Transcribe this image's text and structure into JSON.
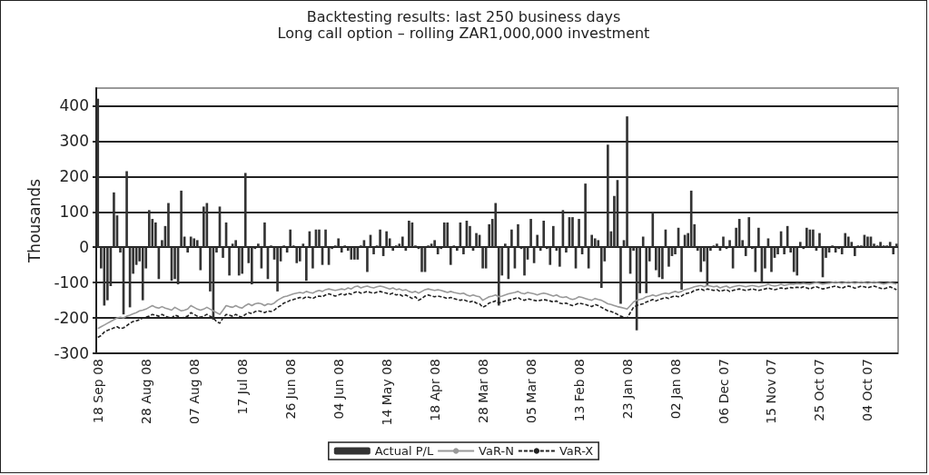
{
  "chart_data": {
    "type": "bar",
    "title": "Backtesting results: last 250 business days",
    "subtitle": "Long call option – rolling ZAR1,000,000 investment",
    "ylabel": "Thousands",
    "categories": [
      "18 Sep 08",
      null,
      null,
      null,
      null,
      null,
      null,
      null,
      null,
      null,
      null,
      null,
      null,
      null,
      null,
      "28 Aug 08",
      null,
      null,
      null,
      null,
      null,
      null,
      null,
      null,
      null,
      null,
      null,
      null,
      null,
      null,
      "07 Aug 08",
      null,
      null,
      null,
      null,
      null,
      null,
      null,
      null,
      null,
      null,
      null,
      null,
      null,
      null,
      "17 Jul 08",
      null,
      null,
      null,
      null,
      null,
      null,
      null,
      null,
      null,
      null,
      null,
      null,
      null,
      null,
      "26 Jun 08",
      null,
      null,
      null,
      null,
      null,
      null,
      null,
      null,
      null,
      null,
      null,
      null,
      null,
      null,
      "04 Jun 08",
      null,
      null,
      null,
      null,
      null,
      null,
      null,
      null,
      null,
      null,
      null,
      null,
      null,
      null,
      "14 May 08",
      null,
      null,
      null,
      null,
      null,
      null,
      null,
      null,
      null,
      null,
      null,
      null,
      null,
      null,
      "18 Apr 08",
      null,
      null,
      null,
      null,
      null,
      null,
      null,
      null,
      null,
      null,
      null,
      null,
      null,
      null,
      "28 Mar 08",
      null,
      null,
      null,
      null,
      null,
      null,
      null,
      null,
      null,
      null,
      null,
      null,
      null,
      null,
      "05 Mar 08",
      null,
      null,
      null,
      null,
      null,
      null,
      null,
      null,
      null,
      null,
      null,
      null,
      null,
      null,
      "13 Feb 08",
      null,
      null,
      null,
      null,
      null,
      null,
      null,
      null,
      null,
      null,
      null,
      null,
      null,
      null,
      "23 Jan 08",
      null,
      null,
      null,
      null,
      null,
      null,
      null,
      null,
      null,
      null,
      null,
      null,
      null,
      null,
      "02 Jan 08",
      null,
      null,
      null,
      null,
      null,
      null,
      null,
      null,
      null,
      null,
      null,
      null,
      null,
      null,
      "06 Dec 07",
      null,
      null,
      null,
      null,
      null,
      null,
      null,
      null,
      null,
      null,
      null,
      null,
      null,
      null,
      "15 Nov 07",
      null,
      null,
      null,
      null,
      null,
      null,
      null,
      null,
      null,
      null,
      null,
      null,
      null,
      null,
      "25 Oct 07",
      null,
      null,
      null,
      null,
      null,
      null,
      null,
      null,
      null,
      null,
      null,
      null,
      null,
      null,
      "04 Oct 07",
      null,
      null,
      null,
      null,
      null,
      null,
      null,
      null,
      null
    ],
    "series": [
      {
        "name": "Actual P/L",
        "color": "#333333",
        "values": [
          420,
          -60,
          -165,
          -150,
          -110,
          155,
          90,
          -15,
          -190,
          215,
          -170,
          -75,
          -50,
          -40,
          -150,
          -60,
          105,
          80,
          70,
          -90,
          20,
          60,
          125,
          -95,
          -90,
          -105,
          160,
          30,
          -15,
          30,
          25,
          20,
          -65,
          115,
          125,
          -125,
          -205,
          -15,
          115,
          -30,
          70,
          -80,
          10,
          20,
          -80,
          -75,
          210,
          -45,
          -105,
          -5,
          10,
          -60,
          70,
          -90,
          5,
          -35,
          -125,
          -40,
          5,
          -15,
          50,
          5,
          -45,
          -40,
          10,
          -95,
          45,
          -60,
          50,
          50,
          -50,
          50,
          -50,
          -5,
          5,
          25,
          -15,
          5,
          -10,
          -35,
          -35,
          -35,
          5,
          20,
          -70,
          35,
          -20,
          5,
          50,
          -25,
          45,
          25,
          -10,
          5,
          10,
          30,
          -10,
          75,
          70,
          5,
          -5,
          -70,
          -70,
          5,
          10,
          20,
          -20,
          -5,
          70,
          70,
          -50,
          5,
          -10,
          70,
          -20,
          75,
          60,
          -10,
          40,
          35,
          -60,
          -60,
          65,
          80,
          125,
          -165,
          -80,
          10,
          -90,
          50,
          -60,
          65,
          -5,
          -80,
          -35,
          80,
          -45,
          35,
          -10,
          75,
          -5,
          -50,
          60,
          -10,
          -55,
          105,
          -15,
          85,
          85,
          -60,
          80,
          -20,
          180,
          -60,
          35,
          25,
          20,
          -115,
          -40,
          290,
          45,
          145,
          190,
          -160,
          20,
          370,
          -75,
          -10,
          -235,
          -130,
          30,
          -130,
          -40,
          100,
          -65,
          -85,
          -90,
          50,
          -55,
          -25,
          -20,
          55,
          -120,
          35,
          40,
          160,
          65,
          -10,
          -70,
          -40,
          -110,
          -10,
          5,
          10,
          -10,
          30,
          -5,
          20,
          -60,
          55,
          80,
          20,
          -25,
          85,
          -5,
          -70,
          55,
          -100,
          -60,
          25,
          -70,
          -30,
          -20,
          45,
          -20,
          60,
          -15,
          -70,
          -80,
          15,
          -5,
          55,
          50,
          50,
          -10,
          40,
          -85,
          -30,
          -15,
          5,
          -15,
          -5,
          -20,
          40,
          30,
          15,
          -25,
          5,
          5,
          35,
          30,
          30,
          10,
          5,
          15,
          5,
          5,
          15,
          -20,
          10
        ]
      },
      {
        "name": "VaR-N",
        "type": "line",
        "color": "#999999",
        "line_style": "solid",
        "values": [
          -230,
          -225,
          -220,
          -215,
          -210,
          -205,
          -200,
          -198,
          -200,
          -195,
          -192,
          -188,
          -185,
          -180,
          -178,
          -175,
          -170,
          -165,
          -170,
          -172,
          -168,
          -172,
          -175,
          -178,
          -170,
          -175,
          -180,
          -178,
          -175,
          -165,
          -170,
          -175,
          -178,
          -175,
          -170,
          -175,
          -180,
          -185,
          -190,
          -178,
          -165,
          -168,
          -170,
          -165,
          -170,
          -172,
          -165,
          -160,
          -165,
          -160,
          -158,
          -160,
          -165,
          -160,
          -162,
          -158,
          -150,
          -145,
          -140,
          -138,
          -135,
          -132,
          -130,
          -128,
          -130,
          -125,
          -128,
          -130,
          -125,
          -122,
          -125,
          -120,
          -118,
          -120,
          -122,
          -120,
          -118,
          -120,
          -115,
          -118,
          -112,
          -110,
          -115,
          -112,
          -110,
          -113,
          -115,
          -112,
          -110,
          -112,
          -115,
          -118,
          -115,
          -120,
          -118,
          -122,
          -120,
          -125,
          -128,
          -125,
          -130,
          -125,
          -120,
          -118,
          -120,
          -122,
          -120,
          -122,
          -125,
          -128,
          -125,
          -128,
          -130,
          -132,
          -130,
          -135,
          -138,
          -135,
          -138,
          -140,
          -150,
          -145,
          -140,
          -138,
          -135,
          -140,
          -138,
          -135,
          -132,
          -130,
          -128,
          -125,
          -130,
          -132,
          -128,
          -130,
          -132,
          -135,
          -132,
          -130,
          -132,
          -135,
          -138,
          -135,
          -140,
          -142,
          -140,
          -145,
          -148,
          -145,
          -140,
          -142,
          -145,
          -148,
          -150,
          -145,
          -148,
          -150,
          -155,
          -160,
          -162,
          -165,
          -168,
          -170,
          -172,
          -175,
          -165,
          -155,
          -150,
          -148,
          -145,
          -140,
          -138,
          -135,
          -138,
          -135,
          -132,
          -130,
          -132,
          -128,
          -125,
          -128,
          -125,
          -120,
          -118,
          -115,
          -112,
          -110,
          -108,
          -112,
          -108,
          -110,
          -112,
          -110,
          -115,
          -112,
          -110,
          -115,
          -112,
          -110,
          -108,
          -110,
          -112,
          -110,
          -108,
          -110,
          -112,
          -110,
          -108,
          -105,
          -108,
          -110,
          -108,
          -105,
          -108,
          -106,
          -104,
          -105,
          -103,
          -104,
          -102,
          -104,
          -105,
          -102,
          -100,
          -102,
          -105,
          -103,
          -102,
          -100,
          -98,
          -100,
          -102,
          -100,
          -98,
          -100,
          -102,
          -100,
          -98,
          -100,
          -102,
          -100,
          -98,
          -100,
          -102,
          -104,
          -102,
          -100,
          -102,
          -104
        ]
      },
      {
        "name": "VaR-X",
        "type": "line",
        "color": "#222222",
        "line_style": "dashed",
        "values": [
          -255,
          -250,
          -240,
          -235,
          -232,
          -228,
          -225,
          -230,
          -228,
          -222,
          -215,
          -210,
          -208,
          -205,
          -200,
          -198,
          -195,
          -190,
          -192,
          -195,
          -190,
          -195,
          -198,
          -200,
          -192,
          -195,
          -200,
          -198,
          -195,
          -185,
          -190,
          -195,
          -198,
          -195,
          -190,
          -195,
          -200,
          -210,
          -215,
          -200,
          -190,
          -192,
          -195,
          -190,
          -195,
          -198,
          -190,
          -185,
          -188,
          -182,
          -180,
          -182,
          -185,
          -180,
          -182,
          -178,
          -170,
          -165,
          -158,
          -155,
          -150,
          -148,
          -145,
          -142,
          -145,
          -140,
          -142,
          -145,
          -140,
          -138,
          -140,
          -135,
          -132,
          -135,
          -138,
          -135,
          -132,
          -135,
          -130,
          -133,
          -128,
          -125,
          -130,
          -128,
          -125,
          -128,
          -130,
          -127,
          -125,
          -128,
          -130,
          -133,
          -130,
          -135,
          -133,
          -138,
          -135,
          -140,
          -145,
          -140,
          -150,
          -145,
          -138,
          -135,
          -138,
          -140,
          -138,
          -140,
          -142,
          -145,
          -142,
          -145,
          -148,
          -150,
          -148,
          -152,
          -155,
          -152,
          -158,
          -160,
          -170,
          -165,
          -158,
          -155,
          -152,
          -158,
          -155,
          -152,
          -150,
          -148,
          -145,
          -142,
          -148,
          -150,
          -146,
          -148,
          -150,
          -152,
          -150,
          -148,
          -150,
          -152,
          -155,
          -152,
          -158,
          -160,
          -158,
          -162,
          -165,
          -162,
          -158,
          -160,
          -162,
          -165,
          -168,
          -162,
          -165,
          -170,
          -175,
          -180,
          -182,
          -185,
          -190,
          -195,
          -198,
          -200,
          -185,
          -170,
          -165,
          -162,
          -160,
          -155,
          -152,
          -148,
          -152,
          -148,
          -145,
          -142,
          -145,
          -140,
          -138,
          -140,
          -138,
          -132,
          -130,
          -128,
          -122,
          -120,
          -118,
          -122,
          -118,
          -120,
          -122,
          -120,
          -125,
          -122,
          -120,
          -125,
          -122,
          -120,
          -118,
          -120,
          -122,
          -120,
          -118,
          -120,
          -122,
          -120,
          -118,
          -115,
          -118,
          -120,
          -118,
          -115,
          -118,
          -116,
          -114,
          -115,
          -113,
          -115,
          -112,
          -115,
          -118,
          -114,
          -112,
          -115,
          -118,
          -116,
          -114,
          -112,
          -110,
          -113,
          -116,
          -112,
          -110,
          -112,
          -116,
          -113,
          -110,
          -112,
          -115,
          -112,
          -110,
          -113,
          -116,
          -118,
          -115,
          -112,
          -116,
          -120
        ]
      }
    ],
    "ylim": [
      -300,
      450
    ],
    "yticks": [
      -300,
      -200,
      -100,
      0,
      100,
      200,
      300,
      400
    ],
    "grid": "y",
    "legend": "bottom"
  }
}
